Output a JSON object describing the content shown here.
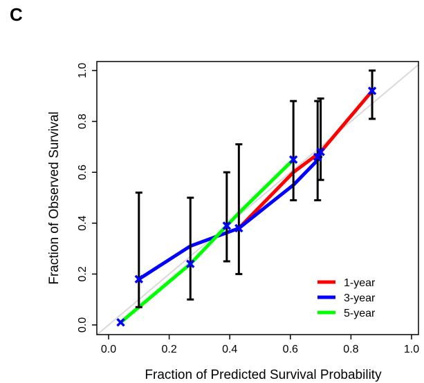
{
  "panel_label": "C",
  "chart_data": {
    "type": "line",
    "title": "",
    "xlabel": "Fraction of Predicted Survival Probability",
    "ylabel": "Fraction of Observed Survival",
    "xlim": [
      0.0,
      1.0
    ],
    "ylim": [
      0.0,
      1.0
    ],
    "x_ticks": [
      "0.0",
      "0.2",
      "0.4",
      "0.6",
      "0.8",
      "1.0"
    ],
    "y_ticks": [
      "0.0",
      "0.2",
      "0.4",
      "0.6",
      "0.8",
      "1.0"
    ],
    "grid": false,
    "legend_position": "bottom-right",
    "reference_line": {
      "x": [
        0.0,
        1.0
      ],
      "y": [
        0.0,
        1.0
      ],
      "color": "#d9d9d9"
    },
    "series": [
      {
        "name": "1-year",
        "color": "#ff0000",
        "x": [
          0.43,
          0.61,
          0.7,
          0.87
        ],
        "y": [
          0.38,
          0.6,
          0.68,
          0.92
        ]
      },
      {
        "name": "3-year",
        "color": "#0000ff",
        "x": [
          0.1,
          0.27,
          0.43,
          0.61,
          0.7
        ],
        "y": [
          0.18,
          0.31,
          0.38,
          0.55,
          0.66
        ]
      },
      {
        "name": "5-year",
        "color": "#00ff00",
        "x": [
          0.04,
          0.27,
          0.43,
          0.61
        ],
        "y": [
          0.01,
          0.24,
          0.44,
          0.65
        ]
      }
    ],
    "points": [
      {
        "x": 0.04,
        "y": 0.01
      },
      {
        "x": 0.1,
        "y": 0.18,
        "err_lo": 0.07,
        "err_hi": 0.52
      },
      {
        "x": 0.27,
        "y": 0.24,
        "err_lo": 0.1,
        "err_hi": 0.5
      },
      {
        "x": 0.39,
        "y": 0.39,
        "err_lo": 0.25,
        "err_hi": 0.6
      },
      {
        "x": 0.43,
        "y": 0.38,
        "err_lo": 0.2,
        "err_hi": 0.71
      },
      {
        "x": 0.61,
        "y": 0.65,
        "err_lo": 0.49,
        "err_hi": 0.88
      },
      {
        "x": 0.69,
        "y": 0.66,
        "err_lo": 0.49,
        "err_hi": 0.88
      },
      {
        "x": 0.7,
        "y": 0.68,
        "err_lo": 0.57,
        "err_hi": 0.89
      },
      {
        "x": 0.87,
        "y": 0.92,
        "err_lo": 0.81,
        "err_hi": 1.0
      }
    ],
    "point_color": "#0000ff",
    "errorbar_color": "#000000"
  }
}
